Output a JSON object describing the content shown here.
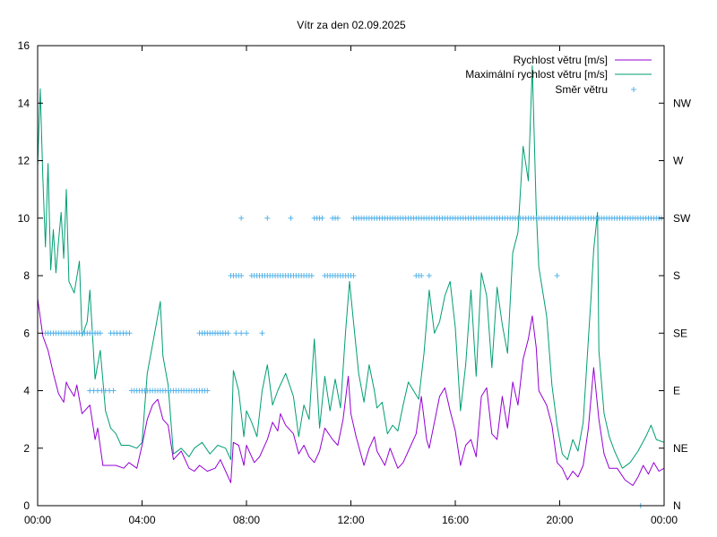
{
  "chart_data": {
    "type": "line",
    "title": "Vítr za den 02.09.2025",
    "x_ticks": [
      "00:00",
      "04:00",
      "08:00",
      "12:00",
      "16:00",
      "20:00",
      "00:00"
    ],
    "x_range_hours": [
      0,
      24
    ],
    "y_ticks": [
      "0",
      "2",
      "4",
      "6",
      "8",
      "10",
      "12",
      "14",
      "16"
    ],
    "ylim": [
      0,
      16
    ],
    "y2_ticks": [
      "N",
      "NE",
      "E",
      "SE",
      "S",
      "SW",
      "W",
      "NW"
    ],
    "y2_tick_values": [
      0,
      2,
      4,
      6,
      8,
      10,
      12,
      14
    ],
    "legend_position": "top-right",
    "grid": false,
    "series": [
      {
        "name": "Rychlost větru [m/s]",
        "color": "#9400d3",
        "style": "line",
        "points": [
          [
            0,
            7.2
          ],
          [
            0.2,
            5.9
          ],
          [
            0.4,
            5.4
          ],
          [
            0.6,
            4.6
          ],
          [
            0.8,
            3.9
          ],
          [
            1.0,
            3.6
          ],
          [
            1.1,
            4.3
          ],
          [
            1.2,
            4.1
          ],
          [
            1.4,
            3.8
          ],
          [
            1.5,
            4.2
          ],
          [
            1.7,
            3.2
          ],
          [
            2.0,
            3.5
          ],
          [
            2.2,
            2.3
          ],
          [
            2.3,
            2.7
          ],
          [
            2.5,
            1.4
          ],
          [
            3.0,
            1.4
          ],
          [
            3.3,
            1.3
          ],
          [
            3.5,
            1.5
          ],
          [
            3.8,
            1.3
          ],
          [
            4.0,
            2.1
          ],
          [
            4.2,
            3.0
          ],
          [
            4.4,
            3.5
          ],
          [
            4.6,
            3.7
          ],
          [
            4.8,
            3.0
          ],
          [
            5.0,
            2.8
          ],
          [
            5.2,
            1.6
          ],
          [
            5.5,
            1.9
          ],
          [
            5.8,
            1.3
          ],
          [
            6.0,
            1.2
          ],
          [
            6.2,
            1.4
          ],
          [
            6.5,
            1.2
          ],
          [
            6.8,
            1.3
          ],
          [
            7.0,
            1.6
          ],
          [
            7.4,
            0.8
          ],
          [
            7.5,
            2.2
          ],
          [
            7.7,
            2.1
          ],
          [
            7.9,
            1.4
          ],
          [
            8.0,
            2.1
          ],
          [
            8.3,
            1.5
          ],
          [
            8.5,
            1.7
          ],
          [
            8.8,
            2.3
          ],
          [
            9.0,
            2.9
          ],
          [
            9.2,
            2.6
          ],
          [
            9.3,
            3.2
          ],
          [
            9.5,
            2.8
          ],
          [
            9.8,
            2.5
          ],
          [
            10.0,
            1.8
          ],
          [
            10.2,
            2.1
          ],
          [
            10.4,
            1.7
          ],
          [
            10.6,
            1.5
          ],
          [
            10.8,
            1.9
          ],
          [
            11.0,
            2.7
          ],
          [
            11.3,
            2.3
          ],
          [
            11.5,
            2.1
          ],
          [
            11.7,
            3.0
          ],
          [
            11.9,
            4.5
          ],
          [
            12.0,
            3.2
          ],
          [
            12.2,
            2.4
          ],
          [
            12.5,
            1.4
          ],
          [
            12.7,
            2.0
          ],
          [
            12.9,
            2.4
          ],
          [
            13.0,
            1.9
          ],
          [
            13.3,
            1.4
          ],
          [
            13.5,
            2.0
          ],
          [
            13.8,
            1.3
          ],
          [
            14.0,
            1.5
          ],
          [
            14.3,
            2.1
          ],
          [
            14.5,
            2.5
          ],
          [
            14.7,
            3.8
          ],
          [
            14.9,
            2.3
          ],
          [
            15.0,
            2.0
          ],
          [
            15.2,
            2.9
          ],
          [
            15.4,
            3.8
          ],
          [
            15.6,
            4.1
          ],
          [
            15.8,
            3.3
          ],
          [
            16.0,
            2.6
          ],
          [
            16.2,
            1.4
          ],
          [
            16.4,
            2.1
          ],
          [
            16.6,
            2.3
          ],
          [
            16.8,
            1.7
          ],
          [
            17.0,
            3.8
          ],
          [
            17.2,
            4.1
          ],
          [
            17.4,
            2.5
          ],
          [
            17.6,
            2.3
          ],
          [
            17.8,
            3.8
          ],
          [
            18.0,
            2.7
          ],
          [
            18.2,
            4.3
          ],
          [
            18.4,
            3.5
          ],
          [
            18.6,
            5.1
          ],
          [
            18.8,
            5.8
          ],
          [
            18.95,
            6.6
          ],
          [
            19.1,
            5.5
          ],
          [
            19.2,
            4.0
          ],
          [
            19.5,
            3.5
          ],
          [
            19.7,
            2.8
          ],
          [
            19.9,
            1.5
          ],
          [
            20.1,
            1.3
          ],
          [
            20.3,
            0.9
          ],
          [
            20.5,
            1.2
          ],
          [
            20.7,
            1.0
          ],
          [
            20.9,
            1.4
          ],
          [
            21.1,
            2.7
          ],
          [
            21.3,
            4.8
          ],
          [
            21.5,
            3.0
          ],
          [
            21.7,
            1.8
          ],
          [
            21.9,
            1.3
          ],
          [
            22.2,
            1.3
          ],
          [
            22.5,
            0.9
          ],
          [
            22.8,
            0.7
          ],
          [
            23.0,
            1.0
          ],
          [
            23.2,
            1.4
          ],
          [
            23.4,
            1.1
          ],
          [
            23.6,
            1.5
          ],
          [
            23.8,
            1.2
          ],
          [
            24,
            1.3
          ]
        ]
      },
      {
        "name": "Maximální rychlost větru [m/s]",
        "color": "#009e73",
        "style": "line",
        "points": [
          [
            0,
            11.8
          ],
          [
            0.1,
            14.5
          ],
          [
            0.2,
            11.4
          ],
          [
            0.3,
            9.0
          ],
          [
            0.4,
            11.9
          ],
          [
            0.5,
            8.2
          ],
          [
            0.6,
            9.6
          ],
          [
            0.7,
            8.1
          ],
          [
            0.8,
            9.2
          ],
          [
            0.9,
            10.2
          ],
          [
            1.0,
            8.6
          ],
          [
            1.1,
            11.0
          ],
          [
            1.2,
            7.8
          ],
          [
            1.4,
            7.4
          ],
          [
            1.6,
            8.5
          ],
          [
            1.7,
            5.9
          ],
          [
            1.9,
            6.4
          ],
          [
            2.0,
            7.5
          ],
          [
            2.2,
            4.4
          ],
          [
            2.4,
            5.4
          ],
          [
            2.6,
            3.3
          ],
          [
            2.8,
            2.7
          ],
          [
            3.0,
            2.5
          ],
          [
            3.2,
            2.1
          ],
          [
            3.5,
            2.1
          ],
          [
            3.8,
            2.0
          ],
          [
            4.0,
            2.2
          ],
          [
            4.2,
            4.6
          ],
          [
            4.4,
            5.6
          ],
          [
            4.6,
            6.6
          ],
          [
            4.7,
            7.1
          ],
          [
            4.8,
            5.2
          ],
          [
            5.0,
            4.2
          ],
          [
            5.2,
            1.8
          ],
          [
            5.5,
            2.0
          ],
          [
            5.8,
            1.7
          ],
          [
            6.0,
            2.0
          ],
          [
            6.3,
            2.2
          ],
          [
            6.6,
            1.8
          ],
          [
            6.9,
            2.1
          ],
          [
            7.2,
            2.0
          ],
          [
            7.4,
            1.6
          ],
          [
            7.5,
            4.7
          ],
          [
            7.7,
            4.0
          ],
          [
            7.9,
            2.4
          ],
          [
            8.0,
            3.3
          ],
          [
            8.2,
            2.9
          ],
          [
            8.4,
            2.4
          ],
          [
            8.6,
            4.0
          ],
          [
            8.8,
            4.9
          ],
          [
            9.0,
            3.5
          ],
          [
            9.2,
            4.0
          ],
          [
            9.5,
            4.6
          ],
          [
            9.8,
            3.8
          ],
          [
            10.0,
            2.4
          ],
          [
            10.2,
            3.5
          ],
          [
            10.4,
            3.0
          ],
          [
            10.6,
            5.8
          ],
          [
            10.8,
            2.7
          ],
          [
            11.0,
            4.5
          ],
          [
            11.2,
            3.3
          ],
          [
            11.4,
            4.4
          ],
          [
            11.6,
            3.4
          ],
          [
            11.8,
            6.1
          ],
          [
            11.95,
            7.8
          ],
          [
            12.1,
            6.4
          ],
          [
            12.3,
            4.6
          ],
          [
            12.5,
            3.6
          ],
          [
            12.7,
            4.9
          ],
          [
            12.9,
            4.0
          ],
          [
            13.0,
            3.4
          ],
          [
            13.2,
            3.6
          ],
          [
            13.4,
            2.5
          ],
          [
            13.6,
            2.8
          ],
          [
            13.8,
            2.6
          ],
          [
            14.0,
            3.5
          ],
          [
            14.2,
            4.3
          ],
          [
            14.4,
            4.0
          ],
          [
            14.6,
            3.7
          ],
          [
            14.8,
            5.3
          ],
          [
            15.0,
            7.5
          ],
          [
            15.2,
            6.0
          ],
          [
            15.4,
            6.4
          ],
          [
            15.6,
            7.3
          ],
          [
            15.8,
            7.8
          ],
          [
            16.0,
            6.2
          ],
          [
            16.2,
            3.3
          ],
          [
            16.4,
            4.9
          ],
          [
            16.6,
            7.5
          ],
          [
            16.8,
            4.5
          ],
          [
            17.0,
            8.1
          ],
          [
            17.2,
            7.3
          ],
          [
            17.4,
            4.8
          ],
          [
            17.6,
            7.6
          ],
          [
            17.8,
            6.3
          ],
          [
            18.0,
            5.3
          ],
          [
            18.2,
            8.8
          ],
          [
            18.4,
            9.5
          ],
          [
            18.6,
            12.5
          ],
          [
            18.8,
            11.3
          ],
          [
            18.95,
            15.3
          ],
          [
            19.1,
            10.3
          ],
          [
            19.2,
            8.3
          ],
          [
            19.5,
            6.6
          ],
          [
            19.7,
            4.2
          ],
          [
            19.9,
            2.8
          ],
          [
            20.1,
            1.8
          ],
          [
            20.3,
            1.6
          ],
          [
            20.5,
            2.3
          ],
          [
            20.7,
            1.9
          ],
          [
            20.9,
            2.9
          ],
          [
            21.1,
            5.8
          ],
          [
            21.2,
            7.2
          ],
          [
            21.3,
            8.9
          ],
          [
            21.45,
            10.2
          ],
          [
            21.5,
            5.4
          ],
          [
            21.7,
            3.2
          ],
          [
            21.9,
            2.4
          ],
          [
            22.1,
            1.9
          ],
          [
            22.4,
            1.3
          ],
          [
            22.7,
            1.5
          ],
          [
            23.0,
            1.9
          ],
          [
            23.3,
            2.4
          ],
          [
            23.5,
            2.8
          ],
          [
            23.7,
            2.3
          ],
          [
            24,
            2.2
          ]
        ]
      },
      {
        "name": "Směr větru",
        "color": "#56b4e9",
        "style": "points",
        "segments": [
          {
            "from": 0.3,
            "to": 2.4,
            "value": 6,
            "step": 0.1
          },
          {
            "from": 2.0,
            "to": 2.9,
            "value": 4,
            "step": 0.15
          },
          {
            "from": 2.8,
            "to": 3.6,
            "value": 6,
            "step": 0.12
          },
          {
            "from": 3.6,
            "to": 6.5,
            "value": 4,
            "step": 0.1
          },
          {
            "from": 6.2,
            "to": 7.3,
            "value": 6,
            "step": 0.1
          },
          {
            "from": 7.6,
            "to": 8.0,
            "value": 6,
            "step": 0.2
          },
          {
            "from": 8.6,
            "to": 8.6,
            "value": 6,
            "step": 0.2
          },
          {
            "from": 7.4,
            "to": 7.8,
            "value": 8,
            "step": 0.1
          },
          {
            "from": 8.2,
            "to": 10.5,
            "value": 8,
            "step": 0.1
          },
          {
            "from": 11.0,
            "to": 12.1,
            "value": 8,
            "step": 0.1
          },
          {
            "from": 14.5,
            "to": 14.7,
            "value": 8,
            "step": 0.1
          },
          {
            "from": 15.0,
            "to": 15.0,
            "value": 8,
            "step": 0.1
          },
          {
            "from": 19.9,
            "to": 19.9,
            "value": 8,
            "step": 0.1
          },
          {
            "from": 7.8,
            "to": 7.8,
            "value": 10,
            "step": 0.1
          },
          {
            "from": 8.8,
            "to": 8.8,
            "value": 10,
            "step": 0.1
          },
          {
            "from": 9.7,
            "to": 9.7,
            "value": 10,
            "step": 0.1
          },
          {
            "from": 10.6,
            "to": 10.9,
            "value": 10,
            "step": 0.1
          },
          {
            "from": 11.3,
            "to": 11.5,
            "value": 10,
            "step": 0.1
          },
          {
            "from": 12.1,
            "to": 23.9,
            "value": 10,
            "step": 0.1
          },
          {
            "from": 23.1,
            "to": 23.1,
            "value": 0,
            "step": 0.1
          }
        ]
      }
    ]
  }
}
